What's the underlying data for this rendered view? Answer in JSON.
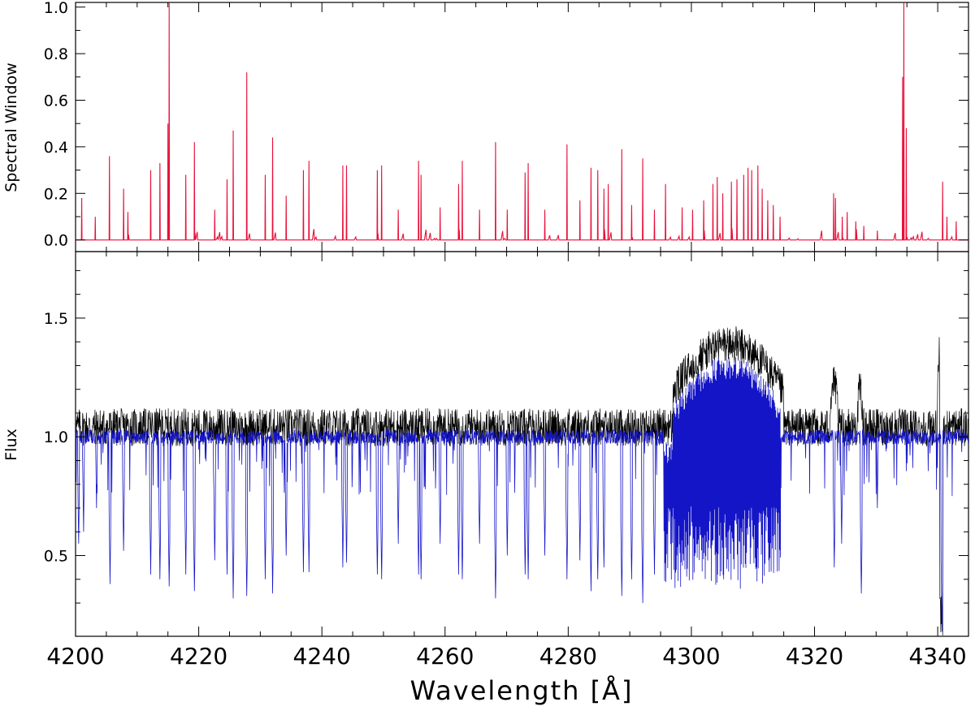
{
  "chart_data": [
    {
      "type": "line",
      "ylabel": "Spectral Window",
      "xlim": [
        4200,
        4345
      ],
      "ylim": [
        -0.05,
        1.02
      ],
      "yticks": [
        0.0,
        0.2,
        0.4,
        0.6,
        0.8,
        1.0
      ],
      "ytick_labels": [
        "0.0",
        "0.2",
        "0.4",
        "0.6",
        "0.8",
        "1.0"
      ],
      "series": [
        {
          "color": "#e8103a",
          "spikes": [
            [
              4201.0,
              0.18
            ],
            [
              4203.2,
              0.1
            ],
            [
              4205.5,
              0.36
            ],
            [
              4207.8,
              0.22
            ],
            [
              4208.5,
              0.12
            ],
            [
              4212.2,
              0.3
            ],
            [
              4213.7,
              0.33
            ],
            [
              4215.2,
              1.02
            ],
            [
              4215.0,
              0.5
            ],
            [
              4217.9,
              0.28
            ],
            [
              4219.3,
              0.42
            ],
            [
              4222.6,
              0.13
            ],
            [
              4224.6,
              0.26
            ],
            [
              4225.6,
              0.47
            ],
            [
              4227.8,
              0.72
            ],
            [
              4230.8,
              0.28
            ],
            [
              4232.0,
              0.44
            ],
            [
              4234.2,
              0.19
            ],
            [
              4237.0,
              0.3
            ],
            [
              4237.9,
              0.34
            ],
            [
              4243.4,
              0.32
            ],
            [
              4244.0,
              0.32
            ],
            [
              4249.0,
              0.3
            ],
            [
              4249.7,
              0.32
            ],
            [
              4252.4,
              0.13
            ],
            [
              4255.7,
              0.34
            ],
            [
              4256.1,
              0.28
            ],
            [
              4259.2,
              0.14
            ],
            [
              4262.2,
              0.24
            ],
            [
              4262.8,
              0.34
            ],
            [
              4265.6,
              0.13
            ],
            [
              4268.2,
              0.42
            ],
            [
              4270.1,
              0.13
            ],
            [
              4273.0,
              0.29
            ],
            [
              4273.5,
              0.33
            ],
            [
              4276.2,
              0.13
            ],
            [
              4279.8,
              0.41
            ],
            [
              4281.9,
              0.17
            ],
            [
              4283.7,
              0.31
            ],
            [
              4284.8,
              0.3
            ],
            [
              4285.8,
              0.22
            ],
            [
              4286.5,
              0.24
            ],
            [
              4288.7,
              0.39
            ],
            [
              4290.3,
              0.15
            ],
            [
              4292.1,
              0.35
            ],
            [
              4294.0,
              0.13
            ],
            [
              4295.8,
              0.24
            ],
            [
              4298.5,
              0.14
            ],
            [
              4300.2,
              0.13
            ],
            [
              4302.0,
              0.17
            ],
            [
              4303.5,
              0.24
            ],
            [
              4304.2,
              0.27
            ],
            [
              4305.1,
              0.2
            ],
            [
              4306.5,
              0.25
            ],
            [
              4307.4,
              0.26
            ],
            [
              4308.5,
              0.28
            ],
            [
              4309.2,
              0.31
            ],
            [
              4309.8,
              0.3
            ],
            [
              4310.8,
              0.32
            ],
            [
              4311.5,
              0.22
            ],
            [
              4312.4,
              0.17
            ],
            [
              4313.3,
              0.15
            ],
            [
              4314.4,
              0.1
            ],
            [
              4323.1,
              0.2
            ],
            [
              4323.4,
              0.18
            ],
            [
              4324.5,
              0.1
            ],
            [
              4325.3,
              0.12
            ],
            [
              4326.7,
              0.08
            ],
            [
              4328.0,
              0.06
            ],
            [
              4330.2,
              0.04
            ],
            [
              4334.3,
              0.7
            ],
            [
              4334.5,
              1.02
            ],
            [
              4334.9,
              0.48
            ],
            [
              4340.8,
              0.25
            ],
            [
              4341.5,
              0.1
            ],
            [
              4343.0,
              0.08
            ]
          ]
        }
      ]
    },
    {
      "type": "line",
      "xlabel": "Wavelength [Å]",
      "ylabel": "Flux",
      "xlim": [
        4200,
        4345
      ],
      "ylim": [
        0.16,
        1.78
      ],
      "xticks": [
        4200,
        4220,
        4240,
        4260,
        4280,
        4300,
        4320,
        4340
      ],
      "xtick_labels": [
        "4200",
        "4220",
        "4240",
        "4260",
        "4280",
        "4300",
        "4320",
        "4340"
      ],
      "yticks": [
        0.5,
        1.0,
        1.5
      ],
      "ytick_labels": [
        "0.5",
        "1.0",
        "1.5"
      ],
      "series": [
        {
          "color": "#000000",
          "baseline": 1.04,
          "bumps": [
            [
              4297,
              4315,
              0.35
            ],
            [
              4322.5,
              4323.8,
              0.18
            ],
            [
              4327.0,
              4327.8,
              0.16
            ],
            [
              4340.0,
              4340.5,
              0.3
            ]
          ],
          "dip": [
            4340.6,
            0.13
          ]
        },
        {
          "color": "#1515c8",
          "baseline": 1.0,
          "absorption_lines": [
            [
              4200.5,
              0.55
            ],
            [
              4201.3,
              0.6
            ],
            [
              4203.4,
              0.7
            ],
            [
              4205.6,
              0.38
            ],
            [
              4207.8,
              0.52
            ],
            [
              4212.2,
              0.42
            ],
            [
              4213.7,
              0.4
            ],
            [
              4215.2,
              0.37
            ],
            [
              4217.9,
              0.42
            ],
            [
              4219.3,
              0.35
            ],
            [
              4222.6,
              0.48
            ],
            [
              4224.6,
              0.42
            ],
            [
              4225.6,
              0.32
            ],
            [
              4227.8,
              0.33
            ],
            [
              4230.8,
              0.4
            ],
            [
              4232.0,
              0.34
            ],
            [
              4234.2,
              0.5
            ],
            [
              4237.0,
              0.43
            ],
            [
              4237.9,
              0.43
            ],
            [
              4243.4,
              0.45
            ],
            [
              4244.0,
              0.47
            ],
            [
              4249.0,
              0.42
            ],
            [
              4249.7,
              0.4
            ],
            [
              4252.4,
              0.55
            ],
            [
              4255.7,
              0.42
            ],
            [
              4256.1,
              0.4
            ],
            [
              4259.2,
              0.55
            ],
            [
              4262.2,
              0.42
            ],
            [
              4262.8,
              0.4
            ],
            [
              4265.6,
              0.55
            ],
            [
              4268.2,
              0.32
            ],
            [
              4270.1,
              0.5
            ],
            [
              4273.0,
              0.42
            ],
            [
              4273.5,
              0.4
            ],
            [
              4276.2,
              0.5
            ],
            [
              4279.8,
              0.4
            ],
            [
              4281.9,
              0.48
            ],
            [
              4283.7,
              0.35
            ],
            [
              4284.8,
              0.4
            ],
            [
              4285.8,
              0.45
            ],
            [
              4288.7,
              0.33
            ],
            [
              4290.3,
              0.4
            ],
            [
              4292.1,
              0.3
            ],
            [
              4294.0,
              0.42
            ]
          ],
          "band": [
            4295.5,
            4314.5,
            0.36,
            1.75
          ],
          "tail_lines": [
            [
              4323.2,
              0.45
            ],
            [
              4324.4,
              0.55
            ],
            [
              4327.6,
              0.34
            ],
            [
              4330.2,
              0.7
            ],
            [
              4340.7,
              0.18
            ]
          ]
        }
      ]
    }
  ]
}
